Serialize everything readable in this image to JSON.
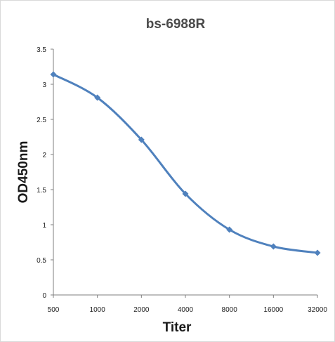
{
  "chart_data": {
    "type": "line",
    "title": "bs-6988R",
    "xlabel": "Titer",
    "ylabel": "OD450nm",
    "categories": [
      "500",
      "1000",
      "2000",
      "4000",
      "8000",
      "16000",
      "32000"
    ],
    "series": [
      {
        "values": [
          3.14,
          2.81,
          2.21,
          1.44,
          0.93,
          0.69,
          0.6
        ]
      }
    ],
    "ylim": [
      0,
      3.5
    ],
    "yticks": [
      "0",
      "0.5",
      "1",
      "1.5",
      "2",
      "2.5",
      "3",
      "3.5"
    ],
    "grid": false,
    "legend": "none",
    "colors": {
      "series": "#4f81bd",
      "axis": "#7f7f7f"
    }
  }
}
